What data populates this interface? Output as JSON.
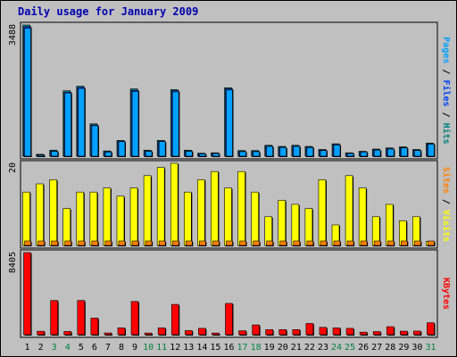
{
  "chart_data": {
    "type": "bar",
    "title": "Daily usage for January 2009",
    "days": [
      "1",
      "2",
      "3",
      "4",
      "5",
      "6",
      "7",
      "8",
      "9",
      "10",
      "11",
      "12",
      "13",
      "14",
      "15",
      "16",
      "17",
      "18",
      "19",
      "20",
      "21",
      "22",
      "23",
      "24",
      "25",
      "26",
      "27",
      "28",
      "29",
      "30",
      "31"
    ],
    "weekend_days": [
      "3",
      "4",
      "10",
      "11",
      "17",
      "18",
      "24",
      "25",
      "31"
    ],
    "colors": {
      "pages": "#00a0ff",
      "files": "#0040ff",
      "hits": "#008080",
      "visits": "#ffff00",
      "sites": "#ff8000",
      "kbytes": "#ff0000",
      "weekday_label": "#000000",
      "weekend_label": "#008040",
      "panel_bg": "#c0c0c0"
    },
    "panels": [
      {
        "id": "hits_files_pages",
        "max_label": "3488",
        "ymax": 3488,
        "right_label": [
          {
            "text": "Pages",
            "color": "#00a0ff"
          },
          {
            "text": " / ",
            "color": "#000000"
          },
          {
            "text": "Files",
            "color": "#0040ff"
          },
          {
            "text": " / ",
            "color": "#000000"
          },
          {
            "text": "Hits",
            "color": "#008080"
          }
        ],
        "series": [
          {
            "name": "Hits",
            "values": [
              3488,
              50,
              160,
              1740,
              1860,
              860,
              140,
              420,
              1790,
              160,
              420,
              1770,
              160,
              80,
              90,
              1820,
              150,
              150,
              290,
              260,
              290,
              260,
              180,
              330,
              90,
              130,
              190,
              220,
              250,
              180,
              350
            ]
          },
          {
            "name": "Files",
            "values": [
              3440,
              40,
              140,
              1700,
              1830,
              830,
              120,
              400,
              1750,
              140,
              400,
              1740,
              140,
              70,
              80,
              1790,
              130,
              130,
              270,
              240,
              270,
              240,
              160,
              310,
              80,
              120,
              170,
              200,
              230,
              160,
              330
            ]
          },
          {
            "name": "Pages",
            "values": [
              3400,
              30,
              130,
              1680,
              1800,
              810,
              110,
              390,
              1720,
              130,
              390,
              1710,
              130,
              60,
              70,
              1760,
              120,
              120,
              260,
              230,
              260,
              230,
              150,
              300,
              70,
              110,
              160,
              190,
              220,
              150,
              320
            ]
          }
        ]
      },
      {
        "id": "visits_sites",
        "max_label": "20",
        "ymax": 20,
        "right_label": [
          {
            "text": "Sites",
            "color": "#ff8000"
          },
          {
            "text": " / ",
            "color": "#000000"
          },
          {
            "text": "Visits",
            "color": "#ffff00"
          }
        ],
        "series": [
          {
            "name": "Visits",
            "values": [
              13,
              15,
              16,
              9,
              13,
              13,
              14,
              12,
              14,
              17,
              19,
              20,
              13,
              16,
              18,
              14,
              18,
              13,
              7,
              11,
              10,
              9,
              16,
              5,
              17,
              14,
              7,
              10,
              6,
              7,
              1
            ]
          },
          {
            "name": "Sites",
            "values": [
              1,
              1,
              1,
              1,
              1,
              1,
              1,
              1,
              1,
              1,
              1,
              1,
              1,
              1,
              1,
              1,
              1,
              1,
              1,
              1,
              1,
              1,
              1,
              1,
              1,
              1,
              1,
              1,
              1,
              1,
              1
            ]
          }
        ]
      },
      {
        "id": "kbytes",
        "max_label": "8405",
        "ymax": 8405,
        "right_label": [
          {
            "text": "KBytes",
            "color": "#ff0000"
          }
        ],
        "series": [
          {
            "name": "KBytes",
            "values": [
              8405,
              350,
              3500,
              330,
              3500,
              1700,
              180,
              700,
              3400,
              170,
              700,
              3100,
              420,
              650,
              170,
              3200,
              400,
              1000,
              520,
              520,
              520,
              1150,
              750,
              700,
              650,
              260,
              320,
              820,
              360,
              370,
              1220
            ]
          }
        ]
      }
    ]
  }
}
